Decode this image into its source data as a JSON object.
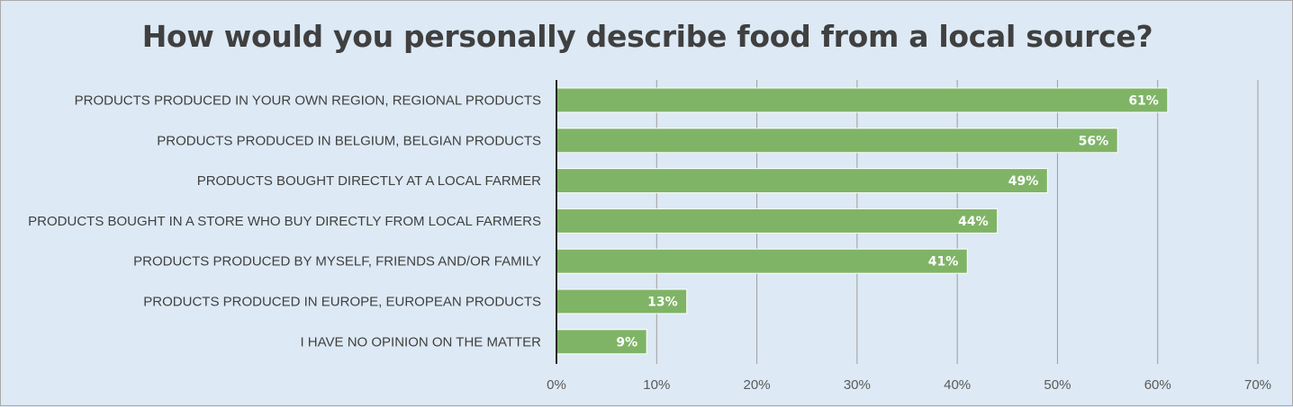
{
  "chart_data": {
    "type": "bar",
    "orientation": "horizontal",
    "title": "How would you personally describe food from a local source?",
    "categories": [
      "PRODUCTS PRODUCED IN YOUR OWN REGION, REGIONAL PRODUCTS",
      "PRODUCTS PRODUCED IN BELGIUM, BELGIAN PRODUCTS",
      "PRODUCTS BOUGHT DIRECTLY AT A LOCAL FARMER",
      "PRODUCTS BOUGHT IN A STORE WHO BUY DIRECTLY FROM LOCAL FARMERS",
      "PRODUCTS PRODUCED BY MYSELF, FRIENDS AND/OR FAMILY",
      "PRODUCTS PRODUCED IN EUROPE, EUROPEAN PRODUCTS",
      "I HAVE NO OPINION ON THE MATTER"
    ],
    "values": [
      61,
      56,
      49,
      44,
      41,
      13,
      9
    ],
    "data_labels": [
      "61%",
      "56%",
      "49%",
      "44%",
      "41%",
      "13%",
      "9%"
    ],
    "x_ticks": [
      "0%",
      "10%",
      "20%",
      "30%",
      "40%",
      "50%",
      "60%",
      "70%"
    ],
    "xlim": [
      0,
      70
    ],
    "xlabel": "",
    "ylabel": "",
    "grid": true,
    "bar_color": "#7fb466",
    "background_color": "#dde9f4"
  }
}
